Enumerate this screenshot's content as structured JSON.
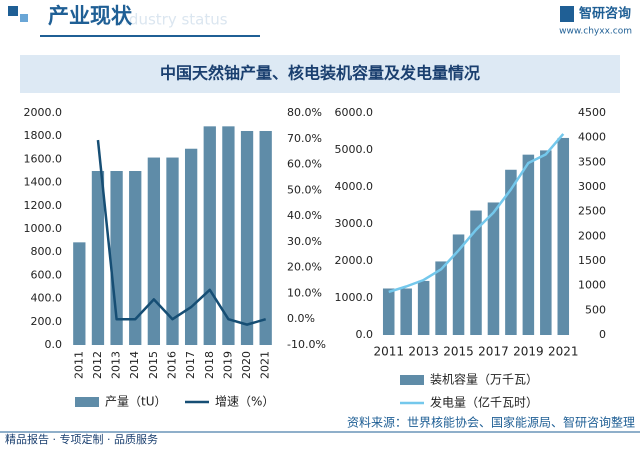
{
  "header": {
    "title": "产业现状",
    "watermark": "Industry status",
    "logo": "智研咨询",
    "url": "www.chyxx.com"
  },
  "title": "中国天然铀产量、核电装机容量及发电量情况",
  "chart_data": [
    {
      "type": "combo",
      "categories": [
        "2011",
        "2012",
        "2013",
        "2014",
        "2015",
        "2016",
        "2017",
        "2018",
        "2019",
        "2020",
        "2021"
      ],
      "series": [
        {
          "name": "产量（tU）",
          "type": "bar",
          "color": "#5f8ca8",
          "values": [
            885,
            1500,
            1500,
            1500,
            1616,
            1616,
            1692,
            1885,
            1885,
            1845,
            1845
          ]
        },
        {
          "name": "增速（%）",
          "type": "line",
          "axis": "y2",
          "color": "#164e74",
          "values": [
            null,
            69.5,
            0,
            0,
            7.7,
            0,
            4.7,
            11.4,
            0,
            -2.1,
            0
          ]
        }
      ],
      "ylim": [
        0,
        2000
      ],
      "yticks": [
        {
          "value": 0,
          "label": "0.0"
        },
        {
          "value": 200,
          "label": "200.0"
        },
        {
          "value": 400,
          "label": "400.0"
        },
        {
          "value": 600,
          "label": "600.0"
        },
        {
          "value": 800,
          "label": "800.0"
        },
        {
          "value": 1000,
          "label": "1000.0"
        },
        {
          "value": 1200,
          "label": "1200.0"
        },
        {
          "value": 1400,
          "label": "1400.0"
        },
        {
          "value": 1600,
          "label": "1600.0"
        },
        {
          "value": 1800,
          "label": "1800.0"
        },
        {
          "value": 2000,
          "label": "2000.0"
        }
      ],
      "y2lim": [
        -10,
        80
      ],
      "y2ticks": [
        {
          "value": -10,
          "label": "-10.0%"
        },
        {
          "value": 0,
          "label": "0.0%"
        },
        {
          "value": 10,
          "label": "10.0%"
        },
        {
          "value": 20,
          "label": "20.0%"
        },
        {
          "value": 30,
          "label": "30.0%"
        },
        {
          "value": 40,
          "label": "40.0%"
        },
        {
          "value": 50,
          "label": "50.0%"
        },
        {
          "value": 60,
          "label": "60.0%"
        },
        {
          "value": 70,
          "label": "70.0%"
        },
        {
          "value": 80,
          "label": "80.0%"
        }
      ]
    },
    {
      "type": "combo",
      "categories": [
        "2011",
        null,
        "2013",
        null,
        "2015",
        null,
        "2017",
        null,
        "2019",
        null,
        "2021"
      ],
      "series": [
        {
          "name": "装机容量（万千瓦）",
          "type": "bar",
          "color": "#5f8ca8",
          "values": [
            1257,
            1257,
            1461,
            1988,
            2717,
            3364,
            3582,
            4466,
            4874,
            4989,
            5326
          ]
        },
        {
          "name": "发电量（亿千瓦时）",
          "type": "line",
          "axis": "y2",
          "color": "#74c8ec",
          "values": [
            874,
            983,
            1115,
            1332,
            1714,
            2132,
            2481,
            2950,
            3487,
            3662,
            4075
          ]
        }
      ],
      "ylim": [
        0,
        6000
      ],
      "yticks": [
        {
          "value": 0,
          "label": "0.0"
        },
        {
          "value": 1000,
          "label": "1000.0"
        },
        {
          "value": 2000,
          "label": "2000.0"
        },
        {
          "value": 3000,
          "label": "3000.0"
        },
        {
          "value": 4000,
          "label": "4000.0"
        },
        {
          "value": 5000,
          "label": "5000.0"
        },
        {
          "value": 6000,
          "label": "6000.0"
        }
      ],
      "y2lim": [
        0,
        4500
      ],
      "y2ticks": [
        0,
        500,
        1000,
        1500,
        2000,
        2500,
        3000,
        3500,
        4000,
        4500
      ]
    }
  ],
  "footer": {
    "left": "精品报告 · 专项定制 · 品质服务",
    "source": "资料来源：世界核能协会、国家能源局、智研咨询整理"
  }
}
